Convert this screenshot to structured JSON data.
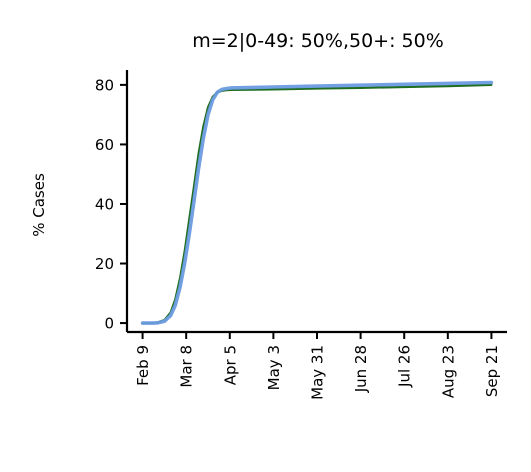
{
  "chart_data": {
    "type": "line",
    "title": "m=2|0-49: 50%,50+: 50%",
    "xlabel": "",
    "ylabel": "% Cases",
    "x_ticks": [
      {
        "day": 0,
        "label": "Feb 9"
      },
      {
        "day": 28,
        "label": "Mar 8"
      },
      {
        "day": 56,
        "label": "Apr 5"
      },
      {
        "day": 84,
        "label": "May 3"
      },
      {
        "day": 112,
        "label": "May 31"
      },
      {
        "day": 140,
        "label": "Jun 28"
      },
      {
        "day": 168,
        "label": "Jul 26"
      },
      {
        "day": 196,
        "label": "Aug 23"
      },
      {
        "day": 224,
        "label": "Sep 21"
      }
    ],
    "y_ticks": [
      0,
      20,
      40,
      60,
      80
    ],
    "xlim": [
      -10,
      234
    ],
    "ylim": [
      -3,
      85
    ],
    "grid": false,
    "series": [
      {
        "color": "#1f6e1f",
        "x": [
          0,
          7,
          10,
          14,
          18,
          21,
          24,
          27,
          30,
          33,
          36,
          39,
          42,
          45,
          48,
          51,
          54,
          57,
          84,
          112,
          140,
          168,
          196,
          224
        ],
        "values": [
          0,
          0,
          0.3,
          1.0,
          3.5,
          8.0,
          15.0,
          24.0,
          35.0,
          46.0,
          57.0,
          66.0,
          72.5,
          76.0,
          77.5,
          78.0,
          78.2,
          78.3,
          78.5,
          78.8,
          79.0,
          79.3,
          79.6,
          80.0
        ]
      },
      {
        "color": "#6a9be0",
        "x": [
          0,
          7,
          10,
          14,
          18,
          21,
          24,
          27,
          30,
          33,
          36,
          39,
          42,
          45,
          48,
          51,
          54,
          57,
          84,
          112,
          140,
          168,
          196,
          224
        ],
        "values": [
          0,
          0,
          0.1,
          0.6,
          2.5,
          6.0,
          12.0,
          20.0,
          30.0,
          41.0,
          52.0,
          62.0,
          70.0,
          75.0,
          77.5,
          78.5,
          78.8,
          79.0,
          79.3,
          79.6,
          79.9,
          80.2,
          80.5,
          80.8
        ]
      }
    ]
  }
}
